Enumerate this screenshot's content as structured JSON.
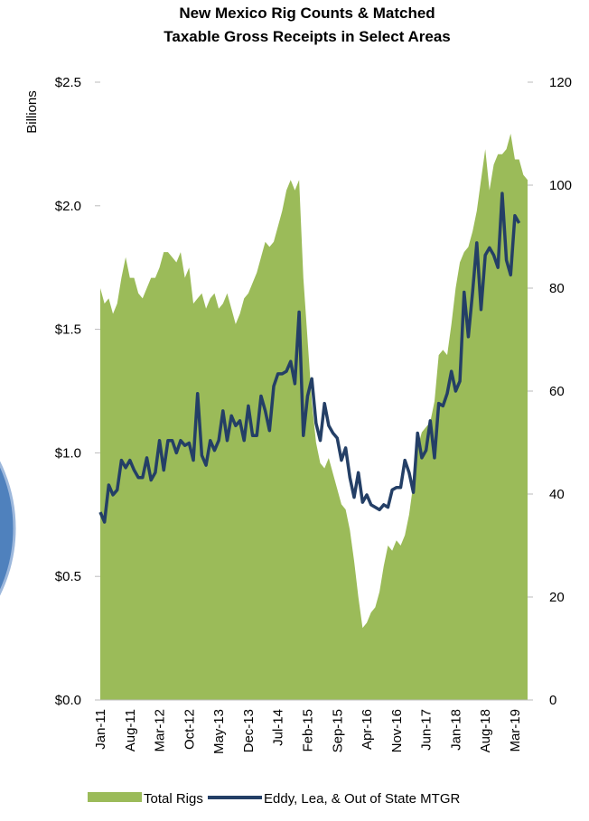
{
  "chart_data": {
    "type": "area-line",
    "title": [
      "New Mexico Rig Counts & Matched",
      "Taxable Gross Receipts in Select Areas"
    ],
    "ylabel": "Billions",
    "categories": [
      "Jan-11",
      null,
      null,
      null,
      null,
      null,
      null,
      "Aug-11",
      null,
      null,
      null,
      null,
      null,
      null,
      "Mar-12",
      null,
      null,
      null,
      null,
      null,
      null,
      "Oct-12",
      null,
      null,
      null,
      null,
      null,
      null,
      "May-13",
      null,
      null,
      null,
      null,
      null,
      null,
      "Dec-13",
      null,
      null,
      null,
      null,
      null,
      null,
      "Jul-14",
      null,
      null,
      null,
      null,
      null,
      null,
      "Feb-15",
      null,
      null,
      null,
      null,
      null,
      null,
      "Sep-15",
      null,
      null,
      null,
      null,
      null,
      null,
      "Apr-16",
      null,
      null,
      null,
      null,
      null,
      null,
      "Nov-16",
      null,
      null,
      null,
      null,
      null,
      null,
      "Jun-17",
      null,
      null,
      null,
      null,
      null,
      null,
      "Jan-18",
      null,
      null,
      null,
      null,
      null,
      null,
      "Aug-18",
      null,
      null,
      null,
      null,
      null,
      null,
      "Mar-19",
      null,
      null,
      null
    ],
    "series": [
      {
        "name": "Total Rigs",
        "type": "area",
        "axis": "y2",
        "color": "#9bbb59",
        "values": [
          80,
          77,
          78,
          75,
          77,
          82,
          86,
          82,
          82,
          79,
          78,
          80,
          82,
          82,
          84,
          87,
          87,
          86,
          85,
          87,
          82,
          84,
          77,
          78,
          79,
          76,
          78,
          79,
          76,
          77,
          79,
          76,
          73,
          75,
          78,
          79,
          81,
          83,
          86,
          89,
          88,
          89,
          92,
          95,
          99,
          101,
          99,
          101,
          82,
          70,
          58,
          50,
          46,
          45,
          47,
          44,
          41,
          38,
          37,
          33,
          27,
          20,
          14,
          15,
          17,
          18,
          21,
          26,
          30,
          29,
          31,
          30,
          32,
          36,
          42,
          49,
          52,
          53,
          54,
          58,
          67,
          68,
          67,
          73,
          80,
          85,
          87,
          88,
          91,
          95,
          101,
          107,
          99,
          104,
          106,
          106,
          107,
          110,
          105,
          105,
          102,
          101
        ]
      },
      {
        "name": "Eddy, Lea, & Out of State MTGR",
        "type": "line",
        "axis": "y",
        "color": "#243f66",
        "values": [
          0.76,
          0.72,
          0.87,
          0.83,
          0.85,
          0.97,
          0.94,
          0.97,
          0.93,
          0.9,
          0.9,
          0.98,
          0.89,
          0.92,
          1.05,
          0.93,
          1.05,
          1.05,
          1.0,
          1.05,
          1.03,
          1.04,
          0.97,
          1.24,
          0.99,
          0.95,
          1.05,
          1.01,
          1.05,
          1.17,
          1.05,
          1.15,
          1.11,
          1.13,
          1.05,
          1.19,
          1.07,
          1.07,
          1.23,
          1.17,
          1.09,
          1.27,
          1.32,
          1.32,
          1.33,
          1.37,
          1.28,
          1.57,
          1.07,
          1.23,
          1.3,
          1.12,
          1.05,
          1.2,
          1.11,
          1.08,
          1.06,
          0.97,
          1.02,
          0.9,
          0.82,
          0.92,
          0.8,
          0.83,
          0.79,
          0.78,
          0.77,
          0.79,
          0.78,
          0.85,
          0.86,
          0.86,
          0.97,
          0.92,
          0.84,
          1.08,
          0.98,
          1.01,
          1.13,
          0.98,
          1.2,
          1.19,
          1.24,
          1.33,
          1.25,
          1.29,
          1.65,
          1.47,
          1.65,
          1.85,
          1.58,
          1.8,
          1.83,
          1.8,
          1.75,
          2.05,
          1.78,
          1.72,
          1.96,
          1.93,
          null,
          null
        ]
      }
    ],
    "ylim": [
      0,
      2.5
    ],
    "yticks": [
      {
        "value": 0,
        "label": "$0.0"
      },
      {
        "value": 0.5,
        "label": "$0.5"
      },
      {
        "value": 1,
        "label": "$1.0"
      },
      {
        "value": 1.5,
        "label": "$1.5"
      },
      {
        "value": 2,
        "label": "$2.0"
      },
      {
        "value": 2.5,
        "label": "$2.5"
      }
    ],
    "y2lim": [
      0,
      120
    ],
    "y2ticks": [
      0,
      20,
      40,
      60,
      80,
      100,
      120
    ],
    "legend": "bottom"
  }
}
